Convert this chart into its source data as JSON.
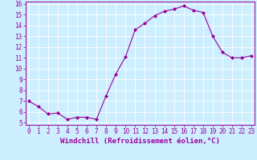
{
  "x": [
    0,
    1,
    2,
    3,
    4,
    5,
    6,
    7,
    8,
    9,
    10,
    11,
    12,
    13,
    14,
    15,
    16,
    17,
    18,
    19,
    20,
    21,
    22,
    23
  ],
  "y": [
    7.0,
    6.5,
    5.8,
    5.9,
    5.3,
    5.5,
    5.5,
    5.3,
    7.5,
    9.5,
    11.1,
    13.6,
    14.2,
    14.9,
    15.3,
    15.5,
    15.8,
    15.4,
    15.2,
    13.0,
    11.5,
    11.0,
    11.0,
    11.2
  ],
  "line_color": "#990099",
  "marker": "D",
  "marker_size": 2,
  "bg_color": "#cceeff",
  "grid_color": "#ffffff",
  "xlabel": "Windchill (Refroidissement éolien,°C)",
  "ylim_min": 5,
  "ylim_max": 16,
  "xlim_min": 0,
  "xlim_max": 23,
  "yticks": [
    5,
    6,
    7,
    8,
    9,
    10,
    11,
    12,
    13,
    14,
    15,
    16
  ],
  "xticks": [
    0,
    1,
    2,
    3,
    4,
    5,
    6,
    7,
    8,
    9,
    10,
    11,
    12,
    13,
    14,
    15,
    16,
    17,
    18,
    19,
    20,
    21,
    22,
    23
  ],
  "tick_color": "#990099",
  "tick_fontsize": 5.5,
  "xlabel_fontsize": 6.5,
  "xlabel_color": "#990099",
  "xlabel_fontweight": "bold",
  "spine_color": "#990099"
}
